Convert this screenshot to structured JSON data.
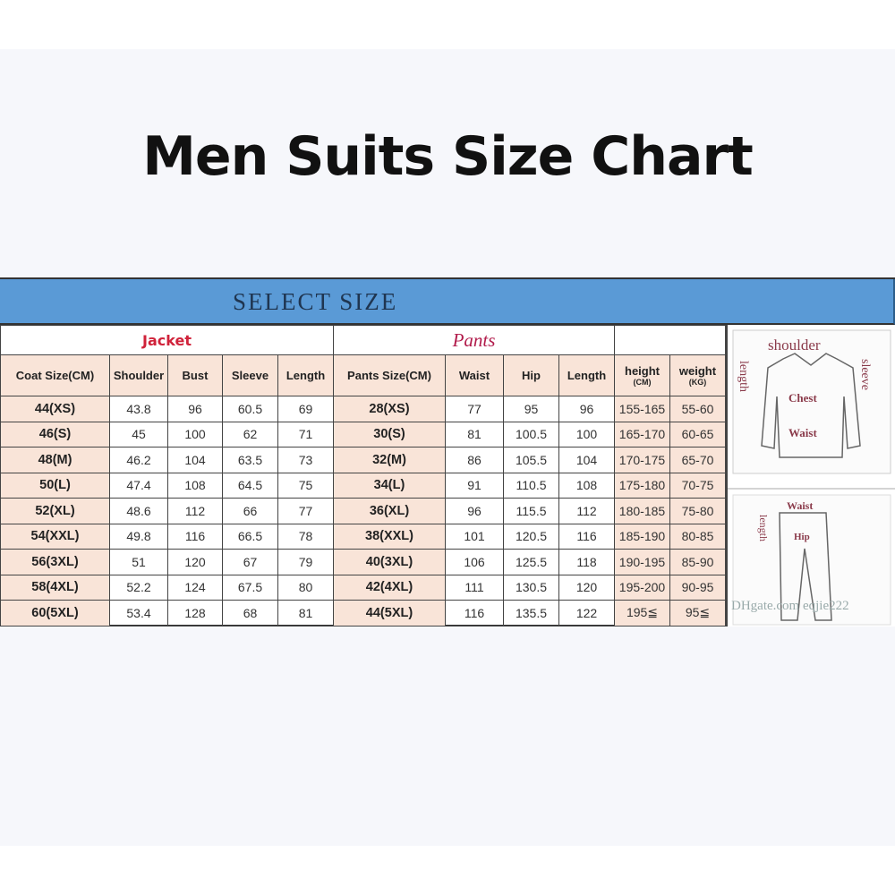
{
  "title": "Men Suits Size Chart",
  "banner": "SELECT SIZE",
  "jacket": {
    "label": "Jacket",
    "headers": [
      "Coat Size(CM)",
      "Shoulder",
      "Bust",
      "Sleeve",
      "Length"
    ],
    "rows": [
      [
        "44(XS)",
        "43.8",
        "96",
        "60.5",
        "69"
      ],
      [
        "46(S)",
        "45",
        "100",
        "62",
        "71"
      ],
      [
        "48(M)",
        "46.2",
        "104",
        "63.5",
        "73"
      ],
      [
        "50(L)",
        "47.4",
        "108",
        "64.5",
        "75"
      ],
      [
        "52(XL)",
        "48.6",
        "112",
        "66",
        "77"
      ],
      [
        "54(XXL)",
        "49.8",
        "116",
        "66.5",
        "78"
      ],
      [
        "56(3XL)",
        "51",
        "120",
        "67",
        "79"
      ],
      [
        "58(4XL)",
        "52.2",
        "124",
        "67.5",
        "80"
      ],
      [
        "60(5XL)",
        "53.4",
        "128",
        "68",
        "81"
      ]
    ]
  },
  "pants": {
    "label": "Pants",
    "headers": [
      "Pants Size(CM)",
      "Waist",
      "Hip",
      "Length"
    ],
    "rows": [
      [
        "28(XS)",
        "77",
        "95",
        "96"
      ],
      [
        "30(S)",
        "81",
        "100.5",
        "100"
      ],
      [
        "32(M)",
        "86",
        "105.5",
        "104"
      ],
      [
        "34(L)",
        "91",
        "110.5",
        "108"
      ],
      [
        "36(XL)",
        "96",
        "115.5",
        "112"
      ],
      [
        "38(XXL)",
        "101",
        "120.5",
        "116"
      ],
      [
        "40(3XL)",
        "106",
        "125.5",
        "118"
      ],
      [
        "42(4XL)",
        "111",
        "130.5",
        "120"
      ],
      [
        "44(5XL)",
        "116",
        "135.5",
        "122"
      ]
    ]
  },
  "body": {
    "headers": [
      {
        "label": "height",
        "unit": "(CM)"
      },
      {
        "label": "weight",
        "unit": "(KG)"
      }
    ],
    "rows": [
      [
        "155-165",
        "55-60"
      ],
      [
        "165-170",
        "60-65"
      ],
      [
        "170-175",
        "65-70"
      ],
      [
        "175-180",
        "70-75"
      ],
      [
        "180-185",
        "75-80"
      ],
      [
        "185-190",
        "80-85"
      ],
      [
        "190-195",
        "85-90"
      ],
      [
        "195-200",
        "90-95"
      ],
      [
        "195≦",
        "95≦"
      ]
    ]
  },
  "diagram": {
    "jacket_labels": [
      "shoulder",
      "length",
      "sleeve",
      "Chest",
      "Waist"
    ],
    "pants_labels": [
      "Waist",
      "length",
      "Hip"
    ],
    "watermark": "DHgate.com  eqjie222"
  }
}
